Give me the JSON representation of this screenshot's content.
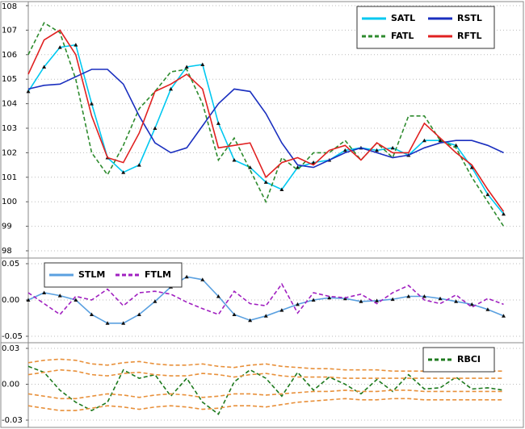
{
  "chart_data": [
    {
      "type": "line",
      "legend": "top-right",
      "grid": true,
      "x": [
        0,
        4,
        8,
        12,
        16,
        20,
        24,
        28,
        32,
        36,
        40,
        44,
        48,
        52,
        56,
        60,
        64,
        68,
        72,
        76,
        80,
        84,
        88,
        92,
        96,
        100,
        104,
        108,
        112,
        116,
        120
      ],
      "xlim": [
        0,
        125
      ],
      "ylim": [
        98,
        108
      ],
      "yticks": [
        108,
        107,
        106,
        105,
        104,
        103,
        102,
        101,
        100,
        99,
        98
      ],
      "series": [
        {
          "name": "SATL",
          "color": "#00c8f0",
          "marker": "triangle",
          "marker_color": "#111111",
          "values": [
            104.5,
            105.5,
            106.3,
            106.4,
            104.0,
            101.8,
            101.2,
            101.5,
            103.0,
            104.6,
            105.5,
            105.6,
            103.2,
            101.7,
            101.4,
            100.8,
            100.5,
            101.4,
            101.6,
            101.7,
            102.1,
            102.2,
            102.1,
            102.2,
            101.9,
            102.5,
            102.5,
            102.3,
            101.4,
            100.3,
            99.5
          ]
        },
        {
          "name": "FATL",
          "color": "#2e8b2e",
          "style": "dashed",
          "values": [
            106.0,
            107.3,
            106.9,
            105.0,
            102.0,
            101.1,
            102.3,
            103.8,
            104.5,
            105.3,
            105.4,
            104.0,
            101.7,
            102.6,
            101.3,
            100.0,
            101.8,
            101.3,
            102.0,
            102.0,
            102.5,
            101.7,
            102.4,
            101.8,
            103.5,
            103.5,
            102.5,
            102.2,
            101.0,
            100.0,
            99.0
          ]
        },
        {
          "name": "RSTL",
          "color": "#1a2fbf",
          "style": "solid",
          "values": [
            104.6,
            104.75,
            104.8,
            105.1,
            105.4,
            105.4,
            104.8,
            103.5,
            102.4,
            102.0,
            102.2,
            103.1,
            104.0,
            104.6,
            104.5,
            103.6,
            102.4,
            101.5,
            101.4,
            101.7,
            102.0,
            102.2,
            102.0,
            101.8,
            101.9,
            102.2,
            102.4,
            102.5,
            102.5,
            102.3,
            102.0
          ]
        },
        {
          "name": "RFTL",
          "color": "#e02020",
          "values": [
            105.2,
            106.6,
            107.0,
            106.0,
            103.5,
            101.8,
            101.6,
            102.8,
            104.5,
            104.8,
            105.2,
            104.6,
            102.2,
            102.3,
            102.4,
            101.0,
            101.6,
            101.8,
            101.5,
            102.1,
            102.3,
            101.7,
            102.4,
            102.0,
            102.0,
            103.2,
            102.6,
            102.0,
            101.5,
            100.5,
            99.6
          ]
        }
      ]
    },
    {
      "type": "line",
      "legend": "top-left",
      "grid": true,
      "x": [
        0,
        4,
        8,
        12,
        16,
        20,
        24,
        28,
        32,
        36,
        40,
        44,
        48,
        52,
        56,
        60,
        64,
        68,
        72,
        76,
        80,
        84,
        88,
        92,
        96,
        100,
        104,
        108,
        112,
        116,
        120
      ],
      "xlim": [
        0,
        125
      ],
      "ylim": [
        -0.05,
        0.05
      ],
      "yticks": [
        0.05,
        {
          "value": 0,
          "label": "0.00"
        },
        -0.05
      ],
      "series": [
        {
          "name": "STLM",
          "color": "#5aa0e0",
          "marker": "triangle",
          "marker_color": "#111111",
          "values": [
            0.0,
            0.01,
            0.006,
            0.0,
            -0.02,
            -0.032,
            -0.032,
            -0.02,
            -0.002,
            0.018,
            0.032,
            0.028,
            0.005,
            -0.02,
            -0.028,
            -0.022,
            -0.014,
            -0.006,
            0.0,
            0.003,
            0.002,
            -0.002,
            -0.001,
            0.001,
            0.005,
            0.005,
            0.002,
            -0.002,
            -0.006,
            -0.013,
            -0.022
          ]
        },
        {
          "name": "FTLM",
          "color": "#a020c0",
          "style": "dashed",
          "values": [
            0.01,
            -0.005,
            -0.02,
            0.005,
            0.0,
            0.015,
            -0.008,
            0.01,
            0.012,
            0.008,
            -0.003,
            -0.012,
            -0.02,
            0.012,
            -0.005,
            -0.008,
            0.022,
            -0.018,
            0.01,
            0.005,
            0.003,
            0.008,
            -0.005,
            0.01,
            0.02,
            0.0,
            -0.005,
            0.007,
            -0.01,
            0.002,
            -0.006
          ]
        }
      ]
    },
    {
      "type": "line",
      "legend": "top-right",
      "grid": true,
      "x": [
        0,
        4,
        8,
        12,
        16,
        20,
        24,
        28,
        32,
        36,
        40,
        44,
        48,
        52,
        56,
        60,
        64,
        68,
        72,
        76,
        80,
        84,
        88,
        92,
        96,
        100,
        104,
        108,
        112,
        116,
        120
      ],
      "xlim": [
        0,
        125
      ],
      "ylim": [
        -0.03,
        0.03
      ],
      "yticks": [
        0.03,
        {
          "value": 0,
          "label": "0.00"
        },
        -0.03
      ],
      "series": [
        {
          "name": "RBCI",
          "color": "#1e7a1e",
          "style": "dashed",
          "values": [
            0.015,
            0.01,
            -0.005,
            -0.015,
            -0.022,
            -0.015,
            0.012,
            0.005,
            0.008,
            -0.01,
            0.005,
            -0.015,
            -0.025,
            0.002,
            0.012,
            0.005,
            -0.01,
            0.01,
            -0.005,
            0.006,
            0.0,
            -0.008,
            0.004,
            -0.006,
            0.008,
            -0.004,
            -0.003,
            0.006,
            -0.004,
            -0.003,
            -0.005
          ]
        },
        {
          "color": "#e8903a",
          "style": "dashed",
          "values": [
            0.018,
            0.02,
            0.021,
            0.02,
            0.017,
            0.016,
            0.018,
            0.019,
            0.017,
            0.016,
            0.016,
            0.017,
            0.015,
            0.014,
            0.016,
            0.017,
            0.015,
            0.014,
            0.013,
            0.013,
            0.012,
            0.012,
            0.012,
            0.011,
            0.011,
            0.011,
            0.011,
            0.011,
            0.011,
            0.011,
            0.011
          ]
        },
        {
          "color": "#e8903a",
          "style": "dashed",
          "values": [
            0.008,
            0.01,
            0.012,
            0.011,
            0.008,
            0.007,
            0.009,
            0.01,
            0.008,
            0.007,
            0.007,
            0.009,
            0.008,
            0.006,
            0.008,
            0.009,
            0.007,
            0.006,
            0.006,
            0.006,
            0.005,
            0.005,
            0.005,
            0.005,
            0.005,
            0.005,
            0.005,
            0.005,
            0.005,
            0.005,
            0.005
          ]
        },
        {
          "color": "#e8903a",
          "style": "dashed",
          "values": [
            -0.008,
            -0.01,
            -0.012,
            -0.012,
            -0.01,
            -0.008,
            -0.009,
            -0.011,
            -0.009,
            -0.008,
            -0.009,
            -0.011,
            -0.01,
            -0.008,
            -0.008,
            -0.009,
            -0.008,
            -0.007,
            -0.006,
            -0.006,
            -0.005,
            -0.006,
            -0.006,
            -0.005,
            -0.005,
            -0.006,
            -0.006,
            -0.006,
            -0.006,
            -0.006,
            -0.006
          ]
        },
        {
          "color": "#e8903a",
          "style": "dashed",
          "values": [
            -0.018,
            -0.02,
            -0.022,
            -0.022,
            -0.02,
            -0.018,
            -0.019,
            -0.021,
            -0.019,
            -0.018,
            -0.019,
            -0.021,
            -0.02,
            -0.018,
            -0.018,
            -0.019,
            -0.017,
            -0.015,
            -0.014,
            -0.013,
            -0.012,
            -0.013,
            -0.013,
            -0.012,
            -0.012,
            -0.013,
            -0.013,
            -0.013,
            -0.013,
            -0.013,
            -0.013
          ]
        }
      ]
    }
  ]
}
